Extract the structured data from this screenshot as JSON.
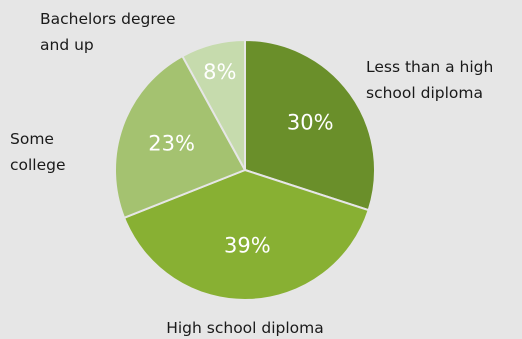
{
  "chart_data": {
    "type": "pie",
    "title": "",
    "slices": [
      {
        "label_lines": [
          "Less than a high",
          "school diploma"
        ],
        "value": 30,
        "value_label": "30%",
        "color": "#6a8f2a"
      },
      {
        "label_lines": [
          "High school diploma"
        ],
        "value": 39,
        "value_label": "39%",
        "color": "#88b033"
      },
      {
        "label_lines": [
          "Some",
          "college"
        ],
        "value": 23,
        "value_label": "23%",
        "color": "#a4c270"
      },
      {
        "label_lines": [
          "Bachelors degree",
          "and up"
        ],
        "value": 8,
        "value_label": "8%",
        "color": "#c6dbad"
      }
    ],
    "start_angle_deg": 0,
    "direction": "clockwise",
    "slice_border_color": "#e6e6e6",
    "label_color": "#1a1a1a",
    "value_label_color": "#ffffff"
  }
}
